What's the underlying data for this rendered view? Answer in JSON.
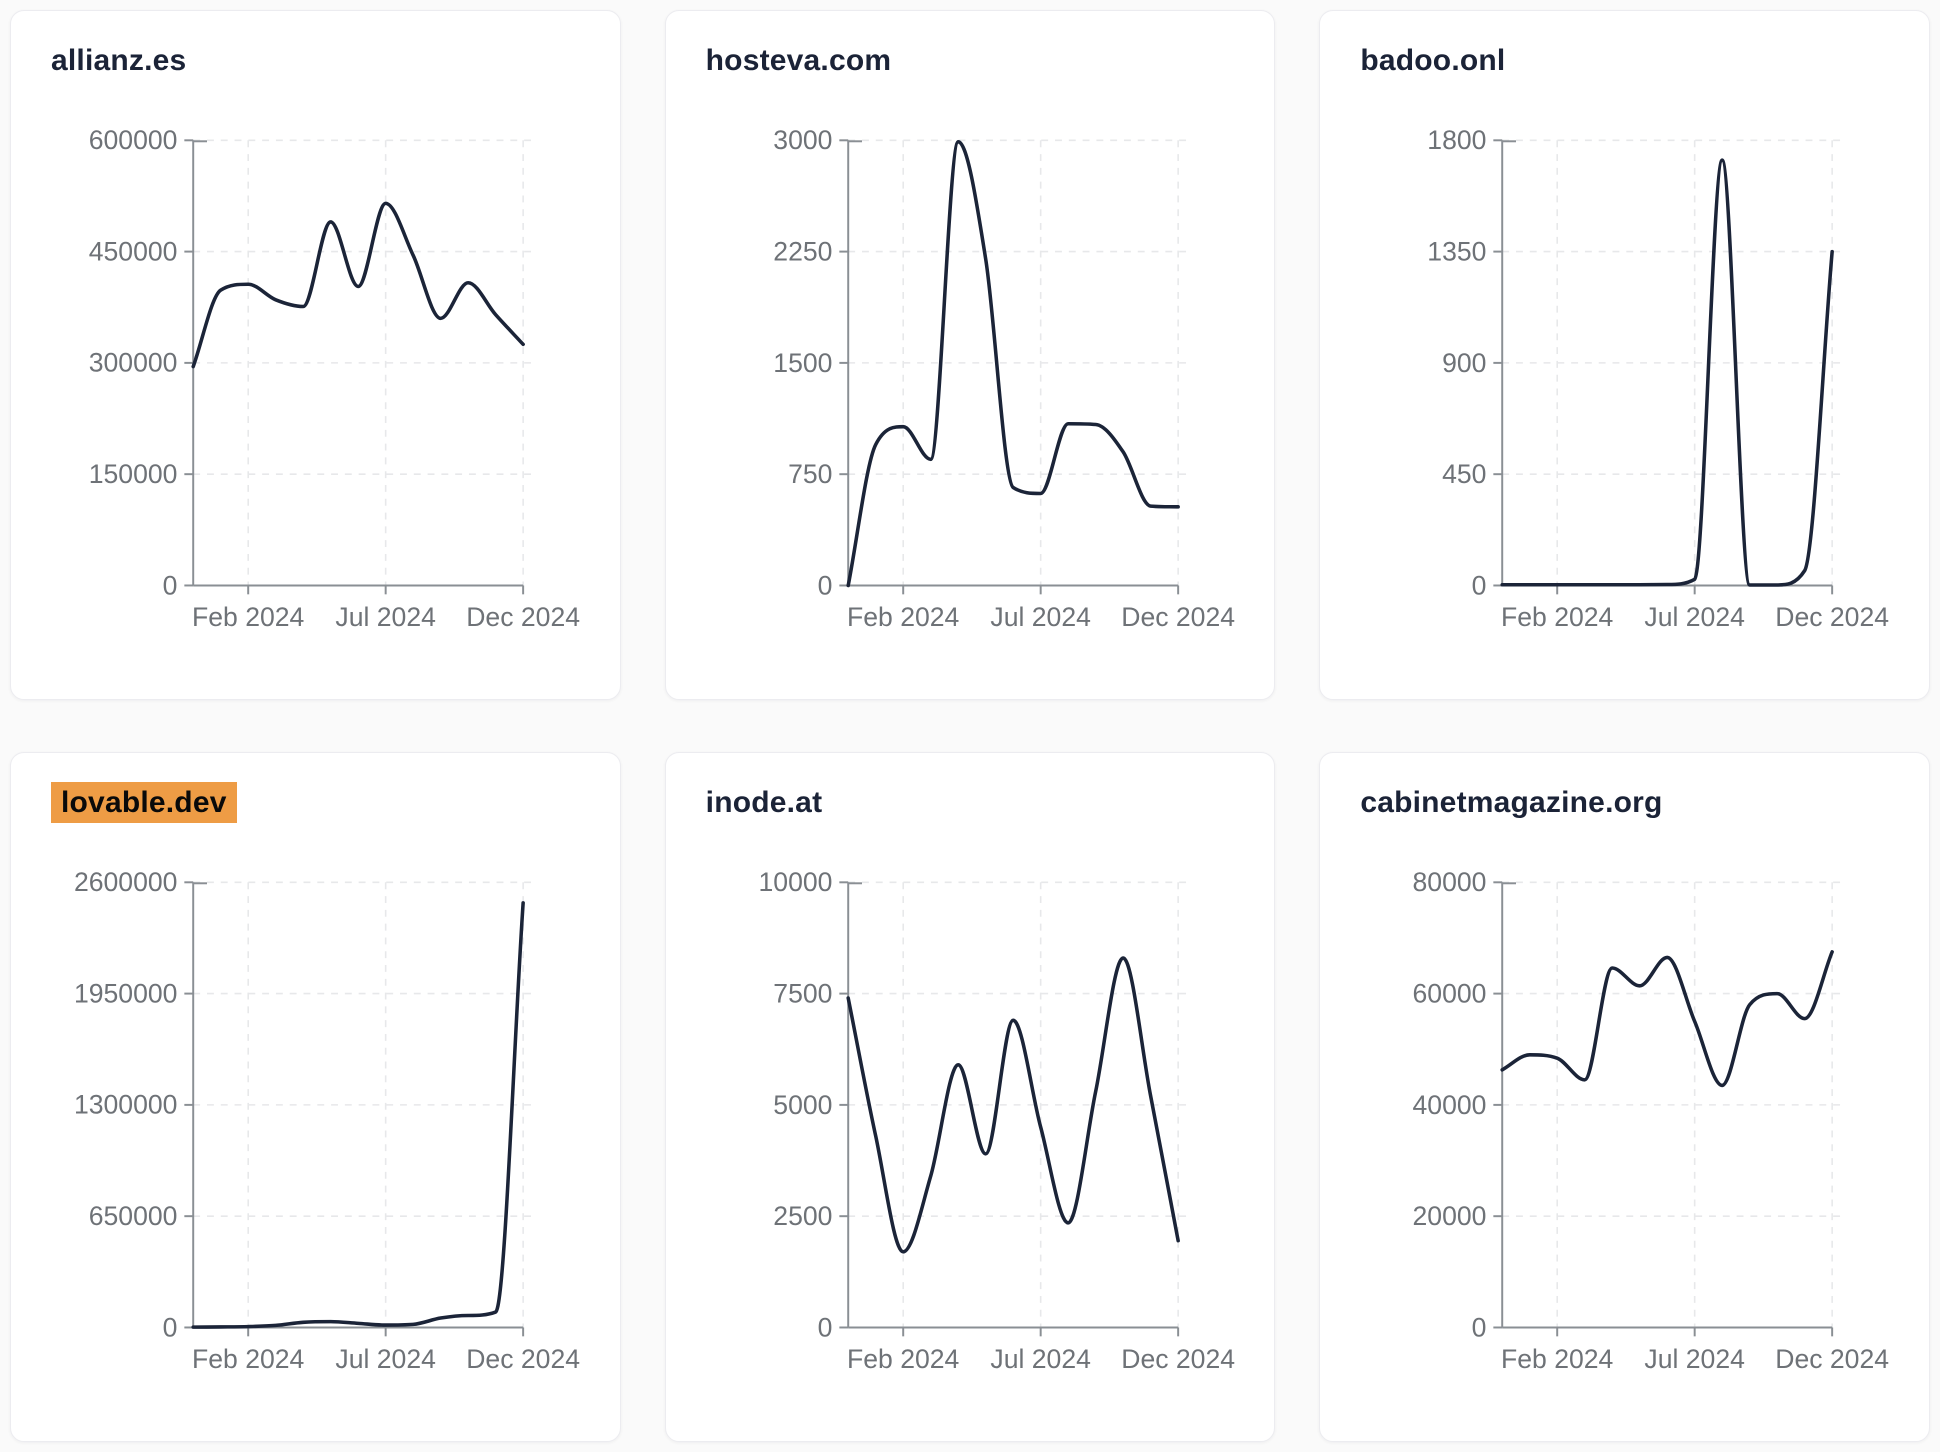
{
  "page": {
    "background_color": "#fafafa"
  },
  "theme": {
    "card_background": "#ffffff",
    "card_border_color": "#ececf0",
    "title_color": "#1b2337",
    "highlight_background": "#ee9c45",
    "highlight_text_color": "#0a0a0a",
    "line_color": "#1b2438",
    "axis_color": "#8a8f94",
    "grid_color": "#e7e8ea",
    "tick_label_color": "#6e7277"
  },
  "chart_data": [
    {
      "type": "line",
      "title": "allianz.es",
      "highlighted": false,
      "x": [
        "Dec 2023",
        "Jan 2024",
        "Feb 2024",
        "Mar 2024",
        "Apr 2024",
        "May 2024",
        "Jun 2024",
        "Jul 2024",
        "Aug 2024",
        "Sep 2024",
        "Oct 2024",
        "Nov 2024",
        "Dec 2024"
      ],
      "values": [
        295000,
        398000,
        406000,
        385000,
        376000,
        490000,
        403000,
        515000,
        445000,
        360000,
        408000,
        365000,
        325000
      ],
      "ylim": [
        0,
        600000
      ],
      "yticks": [
        0,
        150000,
        300000,
        450000,
        600000
      ],
      "xticks": [
        {
          "label": "Feb 2024",
          "index": 2
        },
        {
          "label": "Jul 2024",
          "index": 7
        },
        {
          "label": "Dec 2024",
          "index": 12
        }
      ],
      "grid": true,
      "legend": false
    },
    {
      "type": "line",
      "title": "hosteva.com",
      "highlighted": false,
      "x": [
        "Dec 2023",
        "Jan 2024",
        "Feb 2024",
        "Mar 2024",
        "Apr 2024",
        "May 2024",
        "Jun 2024",
        "Jul 2024",
        "Aug 2024",
        "Sep 2024",
        "Oct 2024",
        "Nov 2024",
        "Dec 2024"
      ],
      "values": [
        0,
        950,
        1070,
        850,
        2990,
        2200,
        660,
        620,
        1090,
        1085,
        900,
        535,
        530
      ],
      "ylim": [
        0,
        3000
      ],
      "yticks": [
        0,
        750,
        1500,
        2250,
        3000
      ],
      "xticks": [
        {
          "label": "Feb 2024",
          "index": 2
        },
        {
          "label": "Jul 2024",
          "index": 7
        },
        {
          "label": "Dec 2024",
          "index": 12
        }
      ],
      "grid": true,
      "legend": false
    },
    {
      "type": "line",
      "title": "badoo.onl",
      "highlighted": false,
      "x": [
        "Dec 2023",
        "Jan 2024",
        "Feb 2024",
        "Mar 2024",
        "Apr 2024",
        "May 2024",
        "Jun 2024",
        "Jul 2024",
        "Aug 2024",
        "Sep 2024",
        "Oct 2024",
        "Nov 2024",
        "Dec 2024"
      ],
      "values": [
        3,
        3,
        3,
        3,
        3,
        3,
        4,
        25,
        1720,
        2,
        2,
        60,
        1350
      ],
      "ylim": [
        0,
        1800
      ],
      "yticks": [
        0,
        450,
        900,
        1350,
        1800
      ],
      "xticks": [
        {
          "label": "Feb 2024",
          "index": 2
        },
        {
          "label": "Jul 2024",
          "index": 7
        },
        {
          "label": "Dec 2024",
          "index": 12
        }
      ],
      "grid": true,
      "legend": false
    },
    {
      "type": "line",
      "title": "lovable.dev",
      "highlighted": true,
      "x": [
        "Dec 2023",
        "Jan 2024",
        "Feb 2024",
        "Mar 2024",
        "Apr 2024",
        "May 2024",
        "Jun 2024",
        "Jul 2024",
        "Aug 2024",
        "Sep 2024",
        "Oct 2024",
        "Nov 2024",
        "Dec 2024"
      ],
      "values": [
        2000,
        3000,
        5000,
        12000,
        30000,
        34000,
        24000,
        14000,
        18000,
        55000,
        70000,
        90000,
        2480000
      ],
      "ylim": [
        0,
        2600000
      ],
      "yticks": [
        0,
        650000,
        1300000,
        1950000,
        2600000
      ],
      "xticks": [
        {
          "label": "Feb 2024",
          "index": 2
        },
        {
          "label": "Jul 2024",
          "index": 7
        },
        {
          "label": "Dec 2024",
          "index": 12
        }
      ],
      "grid": true,
      "legend": false
    },
    {
      "type": "line",
      "title": "inode.at",
      "highlighted": false,
      "x": [
        "Dec 2023",
        "Jan 2024",
        "Feb 2024",
        "Mar 2024",
        "Apr 2024",
        "May 2024",
        "Jun 2024",
        "Jul 2024",
        "Aug 2024",
        "Sep 2024",
        "Oct 2024",
        "Nov 2024",
        "Dec 2024"
      ],
      "values": [
        7400,
        4300,
        1700,
        3400,
        5900,
        3900,
        6900,
        4500,
        2350,
        5300,
        8300,
        5200,
        1950
      ],
      "ylim": [
        0,
        10000
      ],
      "yticks": [
        0,
        2500,
        5000,
        7500,
        10000
      ],
      "xticks": [
        {
          "label": "Feb 2024",
          "index": 2
        },
        {
          "label": "Jul 2024",
          "index": 7
        },
        {
          "label": "Dec 2024",
          "index": 12
        }
      ],
      "grid": true,
      "legend": false
    },
    {
      "type": "line",
      "title": "cabinetmagazine.org",
      "highlighted": false,
      "x": [
        "Dec 2023",
        "Jan 2024",
        "Feb 2024",
        "Mar 2024",
        "Apr 2024",
        "May 2024",
        "Jun 2024",
        "Jul 2024",
        "Aug 2024",
        "Sep 2024",
        "Oct 2024",
        "Nov 2024",
        "Dec 2024"
      ],
      "values": [
        46300,
        49000,
        48400,
        44500,
        64600,
        61400,
        66500,
        55000,
        43500,
        58000,
        60000,
        55500,
        67500
      ],
      "ylim": [
        0,
        80000
      ],
      "yticks": [
        0,
        20000,
        40000,
        60000,
        80000
      ],
      "xticks": [
        {
          "label": "Feb 2024",
          "index": 2
        },
        {
          "label": "Jul 2024",
          "index": 7
        },
        {
          "label": "Dec 2024",
          "index": 12
        }
      ],
      "grid": true,
      "legend": false
    }
  ]
}
